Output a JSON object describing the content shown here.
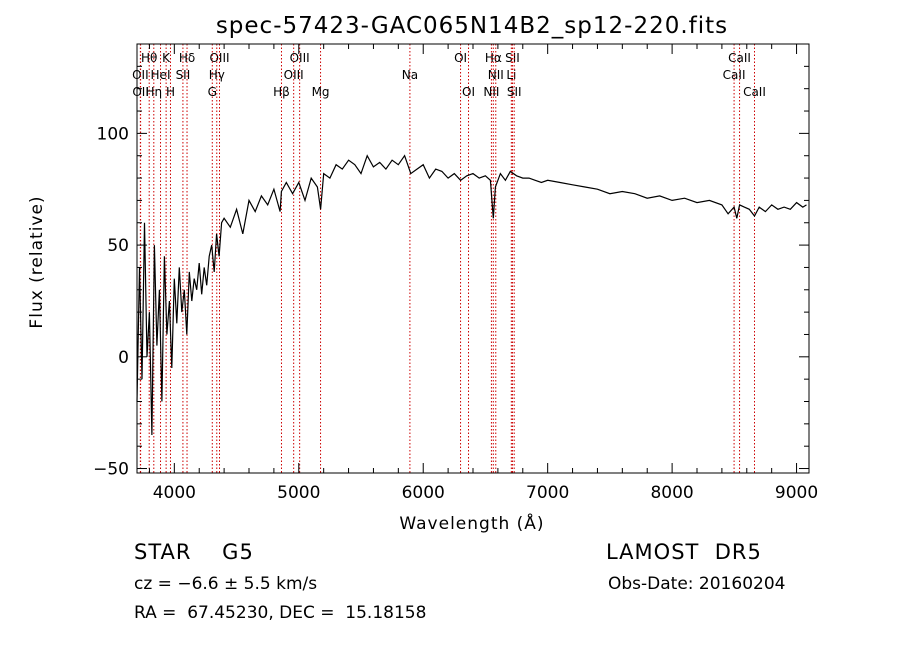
{
  "chart_data": {
    "type": "line",
    "title": "spec-57423-GAC065N14B2_sp12-220.fits",
    "xlabel": "Wavelength (Å)",
    "ylabel": "Flux (relative)",
    "xlim": [
      3700,
      9100
    ],
    "ylim": [
      -52,
      140
    ],
    "xticks": [
      4000,
      5000,
      6000,
      7000,
      8000,
      9000
    ],
    "yticks": [
      -50,
      0,
      50,
      100
    ],
    "grid": false,
    "line_color": "#000000",
    "marker_color": "#cc0000",
    "spectrum": {
      "x": [
        3700,
        3720,
        3740,
        3760,
        3780,
        3800,
        3820,
        3840,
        3860,
        3880,
        3900,
        3920,
        3940,
        3960,
        3980,
        4000,
        4020,
        4040,
        4060,
        4080,
        4100,
        4120,
        4140,
        4160,
        4180,
        4200,
        4220,
        4240,
        4260,
        4280,
        4300,
        4320,
        4340,
        4360,
        4380,
        4400,
        4450,
        4500,
        4550,
        4600,
        4650,
        4700,
        4750,
        4800,
        4850,
        4860,
        4900,
        4950,
        5000,
        5050,
        5100,
        5150,
        5175,
        5200,
        5250,
        5300,
        5350,
        5400,
        5450,
        5500,
        5550,
        5600,
        5650,
        5700,
        5750,
        5800,
        5850,
        5900,
        5950,
        6000,
        6050,
        6100,
        6150,
        6200,
        6250,
        6300,
        6350,
        6400,
        6450,
        6500,
        6540,
        6563,
        6580,
        6620,
        6660,
        6700,
        6750,
        6800,
        6850,
        6900,
        6950,
        7000,
        7100,
        7200,
        7300,
        7400,
        7500,
        7600,
        7700,
        7800,
        7900,
        8000,
        8100,
        8200,
        8300,
        8400,
        8450,
        8498,
        8520,
        8542,
        8580,
        8620,
        8662,
        8700,
        8750,
        8800,
        8850,
        8900,
        8950,
        9000,
        9050,
        9080
      ],
      "y": [
        -20,
        40,
        -10,
        60,
        0,
        20,
        -35,
        50,
        5,
        30,
        -20,
        45,
        10,
        25,
        -5,
        35,
        15,
        40,
        20,
        30,
        10,
        38,
        25,
        35,
        30,
        42,
        28,
        40,
        32,
        45,
        50,
        38,
        55,
        45,
        60,
        62,
        58,
        66,
        55,
        70,
        65,
        72,
        68,
        75,
        65,
        74,
        78,
        73,
        78,
        70,
        80,
        76,
        66,
        82,
        80,
        86,
        84,
        88,
        86,
        82,
        90,
        85,
        87,
        84,
        88,
        86,
        90,
        82,
        84,
        86,
        80,
        84,
        83,
        80,
        82,
        79,
        81,
        82,
        80,
        81,
        79,
        62,
        76,
        82,
        79,
        83,
        81,
        80,
        80,
        79,
        78,
        79,
        78,
        77,
        76,
        75,
        73,
        74,
        73,
        71,
        72,
        70,
        71,
        69,
        70,
        68,
        64,
        67,
        62,
        68,
        67,
        66,
        63,
        67,
        65,
        68,
        66,
        67,
        66,
        69,
        67,
        68
      ]
    },
    "lines": [
      {
        "label": "Hθ",
        "x": 3798,
        "row": 0
      },
      {
        "label": "K",
        "x": 3934,
        "row": 0
      },
      {
        "label": "Hδ",
        "x": 4102,
        "row": 0
      },
      {
        "label": "OIII",
        "x": 4363,
        "row": 0
      },
      {
        "label": "OIII",
        "x": 5007,
        "row": 0
      },
      {
        "label": "OI",
        "x": 6300,
        "row": 0
      },
      {
        "label": "Hα",
        "x": 6563,
        "row": 0
      },
      {
        "label": "SII",
        "x": 6717,
        "row": 0
      },
      {
        "label": "CaII",
        "x": 8542,
        "row": 0
      },
      {
        "label": "OII",
        "x": 3727,
        "row": 1
      },
      {
        "label": "HeI",
        "x": 3889,
        "row": 1
      },
      {
        "label": "SII",
        "x": 4069,
        "row": 1
      },
      {
        "label": "Hγ",
        "x": 4341,
        "row": 1
      },
      {
        "label": "OIII",
        "x": 4959,
        "row": 1
      },
      {
        "label": "Na",
        "x": 5893,
        "row": 1
      },
      {
        "label": "NII",
        "x": 6583,
        "row": 1
      },
      {
        "label": "Li",
        "x": 6708,
        "row": 1
      },
      {
        "label": "CaII",
        "x": 8498,
        "row": 1
      },
      {
        "label": "OII",
        "x": 3729,
        "row": 2
      },
      {
        "label": "Hη",
        "x": 3835,
        "row": 2
      },
      {
        "label": "H",
        "x": 3969,
        "row": 2
      },
      {
        "label": "G",
        "x": 4305,
        "row": 2
      },
      {
        "label": "Hβ",
        "x": 4861,
        "row": 2
      },
      {
        "label": "Mg",
        "x": 5175,
        "row": 2
      },
      {
        "label": "OI",
        "x": 6364,
        "row": 2
      },
      {
        "label": "NII",
        "x": 6548,
        "row": 2
      },
      {
        "label": "SII",
        "x": 6731,
        "row": 2
      },
      {
        "label": "CaII",
        "x": 8662,
        "row": 2
      }
    ],
    "classification": "STAR    G5",
    "survey": "LAMOST  DR5",
    "redshift": "cz = −6.6 ± 5.5 km/s",
    "obs_date": "Obs-Date: 20160204",
    "coords": "RA =  67.45230, DEC =  15.18158"
  }
}
